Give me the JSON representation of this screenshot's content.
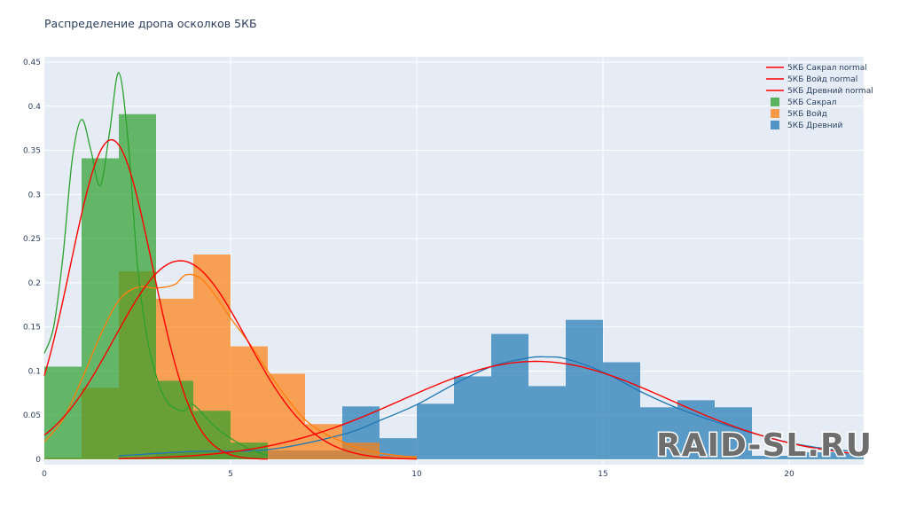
{
  "chart_data": {
    "type": "bar",
    "title": "Распределение дропа осколков 5КБ",
    "xlim": [
      0,
      22
    ],
    "ylim": [
      -0.006,
      0.456
    ],
    "x_ticks": [
      0,
      5,
      10,
      15,
      20
    ],
    "y_ticks": [
      0,
      0.05,
      0.1,
      0.15,
      0.2,
      0.25,
      0.3,
      0.35,
      0.4,
      0.45
    ],
    "y_tick_labels": [
      "0",
      "0.05",
      "0.1",
      "0.15",
      "0.2",
      "0.25",
      "0.3",
      "0.35",
      "0.4",
      "0.45"
    ],
    "grid": true,
    "legend_position": "top-right",
    "legend": [
      "5КБ Сакрал normal",
      "5КБ Войд normal",
      "5КБ Древний normal",
      "5КБ Сакрал",
      "5КБ Войд",
      "5КБ Древний"
    ],
    "histograms": [
      {
        "name": "5КБ Древний",
        "color": "#1f77b4",
        "bin_width": 1,
        "bin_starts": [
          2,
          3,
          4,
          5,
          6,
          7,
          8,
          9,
          10,
          11,
          12,
          13,
          14,
          15,
          16,
          17,
          18,
          19,
          20,
          21
        ],
        "values": [
          0.002,
          0.008,
          0.01,
          0.01,
          0.01,
          0.01,
          0.06,
          0.024,
          0.063,
          0.094,
          0.142,
          0.083,
          0.158,
          0.11,
          0.059,
          0.067,
          0.059,
          0.004,
          0.008,
          0.008
        ]
      },
      {
        "name": "5КБ Войд",
        "color": "#ff7f0e",
        "bin_width": 1,
        "bin_starts": [
          0,
          1,
          2,
          3,
          4,
          5,
          6,
          7,
          8,
          9
        ],
        "values": [
          0.002,
          0.081,
          0.213,
          0.182,
          0.232,
          0.128,
          0.097,
          0.04,
          0.019,
          0.004
        ]
      },
      {
        "name": "5КБ Сакрал",
        "color": "#2ca02c",
        "bin_width": 1,
        "bin_starts": [
          0,
          1,
          2,
          3,
          4,
          5
        ],
        "values": [
          0.105,
          0.341,
          0.391,
          0.089,
          0.055,
          0.019
        ]
      }
    ],
    "kde_lines": [
      {
        "name": "5КБ Древний",
        "color": "#1f77b4",
        "x": [
          2,
          4,
          6,
          8,
          9,
          10,
          11,
          12,
          13,
          13.5,
          14,
          15,
          16,
          17,
          18,
          19,
          20,
          21,
          22
        ],
        "y": [
          0.004,
          0.009,
          0.011,
          0.028,
          0.044,
          0.062,
          0.085,
          0.105,
          0.115,
          0.116,
          0.114,
          0.099,
          0.077,
          0.058,
          0.043,
          0.03,
          0.019,
          0.012,
          0.008
        ]
      },
      {
        "name": "5КБ Войд",
        "color": "#ff7f0e",
        "x": [
          0,
          0.5,
          1,
          1.5,
          2,
          2.5,
          3,
          3.5,
          3.8,
          4.2,
          4.6,
          5,
          5.5,
          6,
          6.5,
          7,
          7.5,
          8,
          8.5,
          9,
          10
        ],
        "y": [
          0.02,
          0.045,
          0.09,
          0.14,
          0.18,
          0.195,
          0.194,
          0.198,
          0.209,
          0.205,
          0.185,
          0.16,
          0.132,
          0.1,
          0.07,
          0.045,
          0.03,
          0.02,
          0.012,
          0.007,
          0.002
        ]
      },
      {
        "name": "5КБ Сакрал",
        "color": "#2ca02c",
        "x": [
          0,
          0.25,
          0.5,
          0.75,
          1,
          1.25,
          1.5,
          1.75,
          2,
          2.25,
          2.5,
          2.75,
          3,
          3.25,
          3.5,
          3.75,
          4,
          4.5,
          5,
          5.5,
          6
        ],
        "y": [
          0.12,
          0.15,
          0.23,
          0.34,
          0.385,
          0.35,
          0.31,
          0.37,
          0.438,
          0.36,
          0.22,
          0.14,
          0.095,
          0.068,
          0.058,
          0.055,
          0.062,
          0.04,
          0.024,
          0.012,
          0.004
        ]
      }
    ],
    "normal_lines": [
      {
        "name": "5КБ Сакрал normal",
        "color": "#ff0000",
        "mean": 1.8,
        "sd": 1.1,
        "peak": 0.362,
        "x_range": [
          0,
          6
        ]
      },
      {
        "name": "5КБ Войд normal",
        "color": "#ff0000",
        "mean": 3.65,
        "sd": 1.78,
        "peak": 0.225,
        "x_range": [
          0,
          10
        ]
      },
      {
        "name": "5КБ Древний normal",
        "color": "#ff0000",
        "mean": 13.2,
        "sd": 3.6,
        "peak": 0.111,
        "x_range": [
          2,
          22
        ]
      }
    ]
  },
  "watermark": {
    "text": "RAID-SL.RU"
  }
}
